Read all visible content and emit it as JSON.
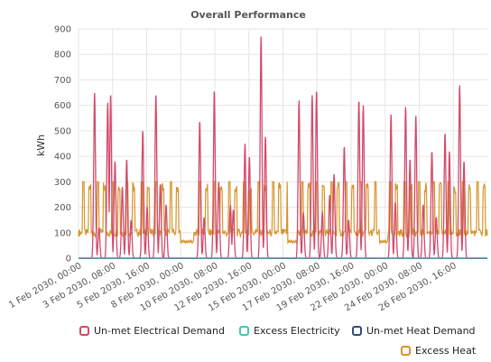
{
  "colors": {
    "unmet_electrical": "#d24a6b",
    "excess_electricity": "#3ec9b0",
    "unmet_heat": "#2f4d7a",
    "excess_heat": "#d4952a",
    "grid": "#e6e6e6",
    "axis": "#cccccc"
  },
  "chart_data": {
    "type": "line",
    "title": "Overall Performance",
    "ylabel": "kWh",
    "xlabel": "",
    "ylim": [
      0,
      900
    ],
    "yticks": [
      0,
      100,
      200,
      300,
      400,
      500,
      600,
      700,
      800,
      900
    ],
    "xlim": [
      "1 Feb 2030, 00:00",
      "28 Feb 2030, 23:00"
    ],
    "grid": true,
    "legend_position": "bottom",
    "x_tick_labels": [
      "1 Feb 2030, 00:00",
      "3 Feb 2030, 08:00",
      "5 Feb 2030, 16:00",
      "8 Feb 2030, 00:00",
      "10 Feb 2030, 08:00",
      "12 Feb 2030, 16:00",
      "15 Feb 2030, 00:00",
      "17 Feb 2030, 08:00",
      "19 Feb 2030, 16:00",
      "22 Feb 2030, 00:00",
      "24 Feb 2030, 08:00",
      "26 Feb 2030, 16:00"
    ],
    "series": [
      {
        "name": "Un-met Electrical Demand",
        "color_key": "unmet_electrical",
        "peaks": [
          {
            "day": 1.1,
            "value": 650
          },
          {
            "day": 1.4,
            "value": 120
          },
          {
            "day": 2.0,
            "value": 610
          },
          {
            "day": 2.2,
            "value": 645
          },
          {
            "day": 2.5,
            "value": 380
          },
          {
            "day": 3.0,
            "value": 280
          },
          {
            "day": 3.3,
            "value": 390
          },
          {
            "day": 3.6,
            "value": 150
          },
          {
            "day": 4.4,
            "value": 500
          },
          {
            "day": 4.7,
            "value": 200
          },
          {
            "day": 5.3,
            "value": 645
          },
          {
            "day": 5.6,
            "value": 290
          },
          {
            "day": 6.0,
            "value": 210
          },
          {
            "day": 8.3,
            "value": 540
          },
          {
            "day": 8.6,
            "value": 160
          },
          {
            "day": 9.3,
            "value": 660
          },
          {
            "day": 9.6,
            "value": 300
          },
          {
            "day": 10.4,
            "value": 210
          },
          {
            "day": 10.6,
            "value": 190
          },
          {
            "day": 11.4,
            "value": 450
          },
          {
            "day": 11.7,
            "value": 400
          },
          {
            "day": 12.5,
            "value": 870
          },
          {
            "day": 12.8,
            "value": 480
          },
          {
            "day": 15.1,
            "value": 620
          },
          {
            "day": 15.4,
            "value": 180
          },
          {
            "day": 16.0,
            "value": 640
          },
          {
            "day": 16.3,
            "value": 660
          },
          {
            "day": 16.7,
            "value": 180
          },
          {
            "day": 17.2,
            "value": 250
          },
          {
            "day": 17.5,
            "value": 330
          },
          {
            "day": 18.2,
            "value": 440
          },
          {
            "day": 18.5,
            "value": 150
          },
          {
            "day": 19.2,
            "value": 620
          },
          {
            "day": 19.5,
            "value": 600
          },
          {
            "day": 21.4,
            "value": 565
          },
          {
            "day": 21.7,
            "value": 220
          },
          {
            "day": 22.4,
            "value": 595
          },
          {
            "day": 22.7,
            "value": 390
          },
          {
            "day": 23.1,
            "value": 560
          },
          {
            "day": 23.6,
            "value": 210
          },
          {
            "day": 24.2,
            "value": 420
          },
          {
            "day": 24.5,
            "value": 160
          },
          {
            "day": 25.1,
            "value": 490
          },
          {
            "day": 25.4,
            "value": 420
          },
          {
            "day": 26.1,
            "value": 680
          },
          {
            "day": 26.4,
            "value": 380
          }
        ]
      },
      {
        "name": "Excess Electricity",
        "color_key": "excess_electricity",
        "peaks": []
      },
      {
        "name": "Un-met Heat Demand",
        "color_key": "unmet_heat",
        "peaks": []
      },
      {
        "name": "Excess Heat",
        "color_key": "excess_heat",
        "plateau_value": 300,
        "baseline_value": 100,
        "active_ranges": [
          [
            0.0,
            7.0
          ],
          [
            8.3,
            14.3
          ],
          [
            15.0,
            20.6
          ],
          [
            21.2,
            28.0
          ]
        ],
        "off_ranges": [
          [
            7.0,
            7.9
          ],
          [
            14.3,
            15.0
          ],
          [
            20.6,
            21.2
          ]
        ],
        "off_value": 65
      }
    ]
  },
  "legend": {
    "items": [
      {
        "label": "Un-met Electrical Demand",
        "color_key": "unmet_electrical"
      },
      {
        "label": "Excess Electricity",
        "color_key": "excess_electricity"
      },
      {
        "label": "Un-met Heat Demand",
        "color_key": "unmet_heat"
      },
      {
        "label": "Excess Heat",
        "color_key": "excess_heat"
      }
    ]
  }
}
